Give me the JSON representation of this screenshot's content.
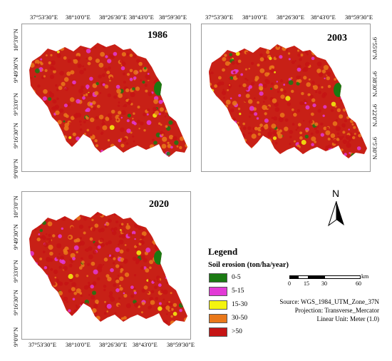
{
  "maps": [
    {
      "year": "1986",
      "top_ticks": [
        "37°53'30\"E",
        "38°10'0\"E",
        "38°26'30\"E",
        "38°43'0\"E",
        "38°59'30\"E"
      ],
      "left_ticks": [
        "10°3'0\"N",
        "9°49'30\"N",
        "9°33'0\"N",
        "9°16'30\"N",
        "9°0'0\"N"
      ],
      "right_ticks": [],
      "bottom_ticks": []
    },
    {
      "year": "2003",
      "top_ticks": [
        "37°53'30\"E",
        "38°10'0\"E",
        "38°26'30\"E",
        "38°43'0\"E",
        "38°59'30\"E"
      ],
      "left_ticks": [],
      "right_ticks": [
        "9°55'0\"N",
        "9°38'30\"N",
        "9°22'0\"N",
        "9°5'30\"N"
      ],
      "bottom_ticks": []
    },
    {
      "year": "2020",
      "top_ticks": [],
      "left_ticks": [
        "10°3'0\"N",
        "9°49'30\"N",
        "9°33'0\"N",
        "9°16'30\"N",
        "9°0'0\"N"
      ],
      "right_ticks": [],
      "bottom_ticks": [
        "37°53'30\"E",
        "38°10'0\"E",
        "38°26'30\"E",
        "38°43'0\"E",
        "38°59'30\"E"
      ]
    }
  ],
  "legend": {
    "title": "Legend",
    "subtitle": "Soil erosion (ton/ha/year)",
    "classes": [
      {
        "label": "0-5",
        "color": "#1a7a12"
      },
      {
        "label": "5-15",
        "color": "#e23ad6"
      },
      {
        "label": "15-30",
        "color": "#f4f40e"
      },
      {
        "label": "30-50",
        "color": "#e9781a"
      },
      {
        "label": ">50",
        "color": "#c61414"
      }
    ]
  },
  "north_arrow": "N",
  "scale": {
    "labels": [
      "0",
      "15",
      "30",
      "60"
    ],
    "unit": "km"
  },
  "source": {
    "line1": "Source:  WGS_1984_UTM_Zone_37N",
    "line2": "Projection: Transverse_Mercator",
    "line3": "Linear Unit: Meter (1.0)"
  },
  "colors": {
    "frame": "#9a9a9a",
    "base": "#c82016"
  }
}
